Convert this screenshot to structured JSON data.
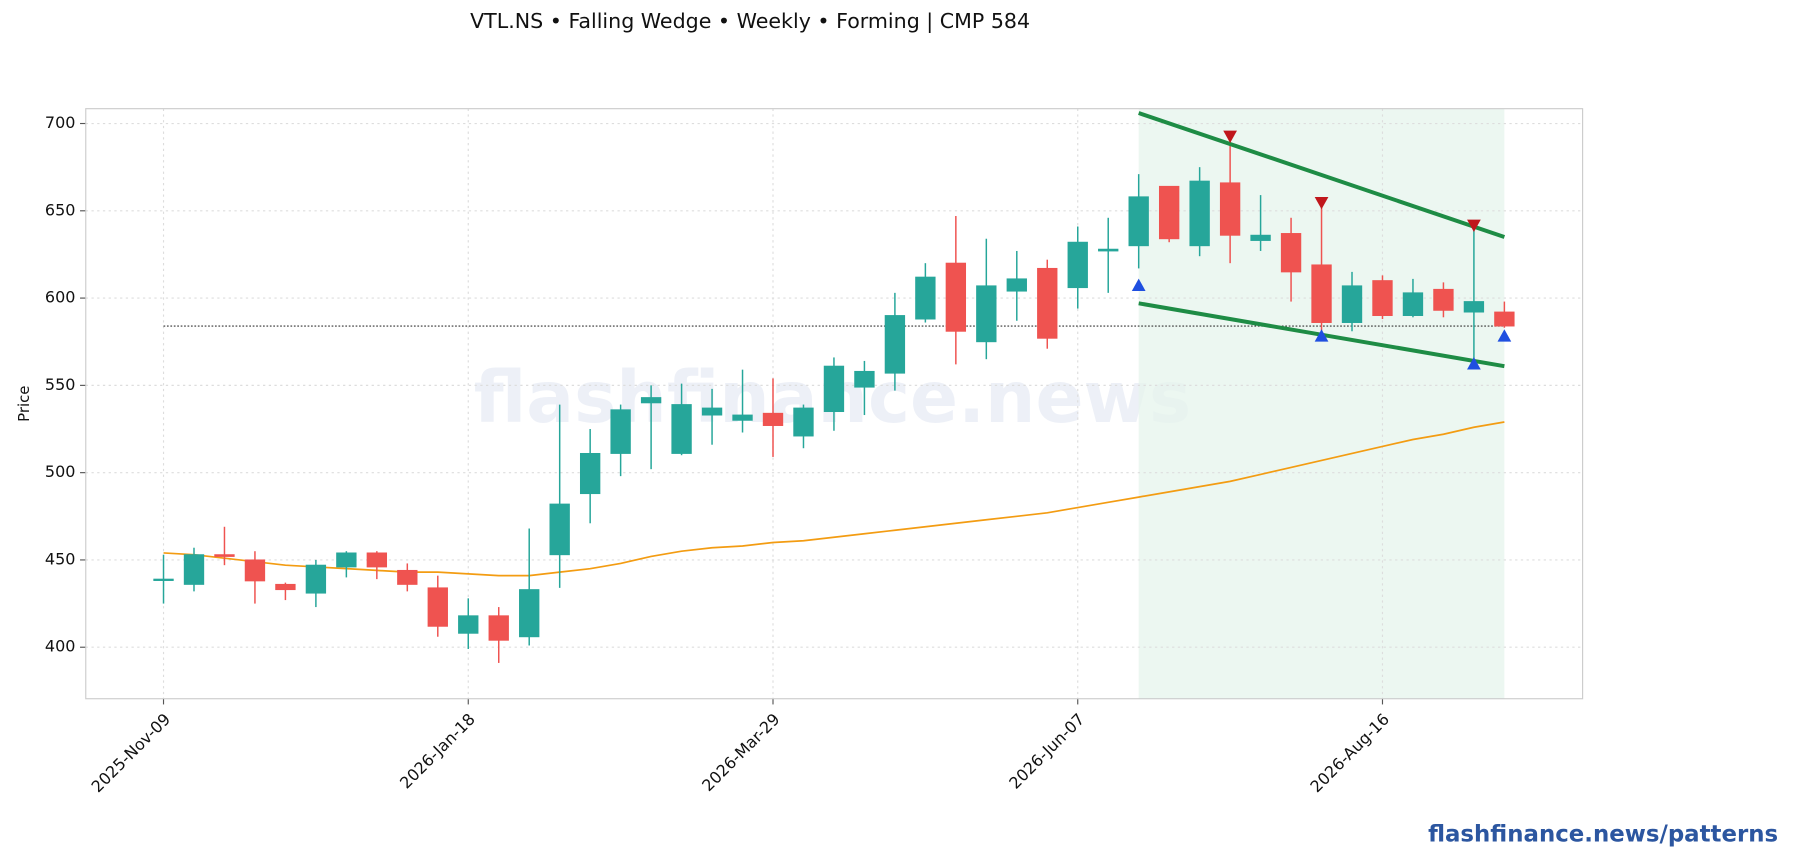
{
  "chart_data": {
    "type": "candlestick",
    "title": "VTL.NS  •  Falling Wedge  •  Weekly  •  Forming  |  CMP 584",
    "y_label": "Price",
    "watermark": "flashfinance.news",
    "footer": "flashfinance.news/patterns",
    "x": [
      "2025-Nov-09",
      "2025-Nov-16",
      "2025-Nov-23",
      "2025-Nov-30",
      "2025-Dec-07",
      "2025-Dec-14",
      "2025-Dec-21",
      "2025-Dec-28",
      "2026-Jan-04",
      "2026-Jan-11",
      "2026-Jan-18",
      "2026-Jan-25",
      "2026-Feb-01",
      "2026-Feb-08",
      "2026-Feb-15",
      "2026-Feb-22",
      "2026-Mar-01",
      "2026-Mar-08",
      "2026-Mar-15",
      "2026-Mar-22",
      "2026-Mar-29",
      "2026-Apr-05",
      "2026-Apr-12",
      "2026-Apr-19",
      "2026-Apr-26",
      "2026-May-03",
      "2026-May-10",
      "2026-May-17",
      "2026-May-24",
      "2026-May-31",
      "2026-Jun-07",
      "2026-Jun-14",
      "2026-Jun-21",
      "2026-Jun-28",
      "2026-Jul-05",
      "2026-Jul-12",
      "2026-Jul-19",
      "2026-Jul-26",
      "2026-Aug-02",
      "2026-Aug-09",
      "2026-Aug-16",
      "2026-Aug-23",
      "2026-Aug-30",
      "2026-Sep-06",
      "2026-Sep-13"
    ],
    "open": [
      439,
      436,
      453,
      450,
      436,
      431,
      446,
      454,
      444,
      434,
      408,
      418,
      406,
      453,
      488,
      511,
      540,
      511,
      533,
      530,
      534,
      521,
      535,
      549,
      557,
      588,
      620,
      575,
      604,
      617,
      606,
      627,
      630,
      664,
      630,
      666,
      633,
      637,
      619,
      586,
      610,
      590,
      605,
      592,
      592
    ],
    "high": [
      453,
      457,
      469,
      455,
      437,
      450,
      455,
      455,
      448,
      441,
      428,
      423,
      468,
      539,
      525,
      539,
      550,
      551,
      548,
      559,
      554,
      539,
      566,
      564,
      603,
      620,
      647,
      634,
      627,
      622,
      641,
      646,
      671,
      664,
      675,
      692,
      659,
      646,
      654,
      615,
      613,
      611,
      609,
      641,
      598
    ],
    "low": [
      425,
      432,
      447,
      425,
      427,
      423,
      440,
      439,
      432,
      406,
      399,
      391,
      401,
      434,
      471,
      498,
      502,
      510,
      516,
      523,
      509,
      514,
      524,
      533,
      547,
      586,
      562,
      565,
      587,
      571,
      594,
      603,
      617,
      632,
      624,
      620,
      627,
      598,
      580,
      581,
      588,
      589,
      589,
      565,
      583
    ],
    "close": [
      439,
      453,
      452,
      438,
      433,
      447,
      454,
      446,
      436,
      412,
      418,
      404,
      433,
      482,
      511,
      536,
      543,
      539,
      537,
      533,
      527,
      537,
      561,
      558,
      590,
      612,
      581,
      607,
      611,
      577,
      632,
      628,
      658,
      634,
      667,
      636,
      636,
      615,
      586,
      607,
      590,
      603,
      593,
      598,
      584
    ],
    "up_color": "#26a69a",
    "down_color": "#ef5350",
    "moving_average": {
      "color": "#f39c12",
      "values": [
        454,
        453,
        451,
        449,
        447,
        446,
        445,
        444,
        443,
        443,
        442,
        441,
        441,
        443,
        445,
        448,
        452,
        455,
        457,
        458,
        460,
        461,
        463,
        465,
        467,
        469,
        471,
        473,
        475,
        477,
        480,
        483,
        486,
        489,
        492,
        495,
        499,
        503,
        507,
        511,
        515,
        519,
        522,
        526,
        529
      ]
    },
    "cmp_line": 584,
    "pattern_range": [
      "2026-Jun-21",
      "2026-Sep-13"
    ],
    "trendlines": [
      {
        "color": "#1e8c45",
        "x": [
          "2026-Jun-21",
          "2026-Sep-13"
        ],
        "values": [
          706,
          635
        ]
      },
      {
        "color": "#1e8c45",
        "x": [
          "2026-Jun-21",
          "2026-Sep-13"
        ],
        "values": [
          597,
          561
        ]
      }
    ],
    "peaks": {
      "color": "#c0171c",
      "x": [
        "2026-Jul-12",
        "2026-Aug-02",
        "2026-Sep-06"
      ],
      "values": [
        692,
        654,
        641
      ]
    },
    "troughs": {
      "color": "#1f4fe0",
      "x": [
        "2026-Jun-21",
        "2026-Aug-02",
        "2026-Sep-06",
        "2026-Sep-13"
      ],
      "values": [
        608,
        579,
        563,
        579
      ]
    },
    "ylim": [
      370.5,
      708.5
    ],
    "yticks": [
      400,
      450,
      500,
      550,
      600,
      650,
      700
    ],
    "xticks": [
      "2025-Nov-09",
      "2026-Jan-18",
      "2026-Mar-29",
      "2026-Jun-07",
      "2026-Aug-16"
    ],
    "grid": true
  }
}
